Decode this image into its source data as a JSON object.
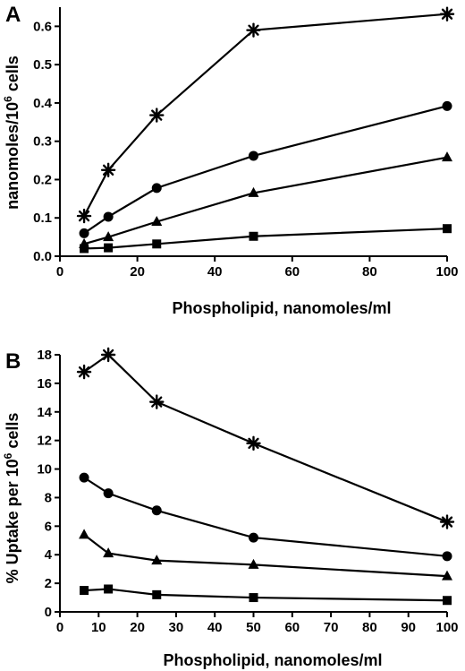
{
  "chart_data": [
    {
      "panel": "A",
      "type": "line",
      "xlabel": "Phospholipid, nanomoles/ml",
      "ylabel_main": "nanomoles/10",
      "ylabel_sup": "6",
      "ylabel_tail": " cells",
      "xlim": [
        0,
        100
      ],
      "ylim": [
        0,
        0.65
      ],
      "xticks": [
        0,
        20,
        40,
        60,
        80,
        100
      ],
      "xtick_labels": [
        "0",
        "20",
        "40",
        "60",
        "80",
        "100"
      ],
      "yticks": [
        0,
        0.1,
        0.2,
        0.3,
        0.4,
        0.5,
        0.6
      ],
      "ytick_labels": [
        "0.0",
        "0.1",
        "0.2",
        "0.3",
        "0.4",
        "0.5",
        "0.6"
      ],
      "grid": false,
      "series": [
        {
          "marker": "asterisk",
          "x": [
            6.25,
            12.5,
            25,
            50,
            100
          ],
          "y": [
            0.105,
            0.225,
            0.368,
            0.59,
            0.632
          ]
        },
        {
          "marker": "circle",
          "x": [
            6.25,
            12.5,
            25,
            50,
            100
          ],
          "y": [
            0.06,
            0.103,
            0.178,
            0.262,
            0.392
          ]
        },
        {
          "marker": "triangle",
          "x": [
            6.25,
            12.5,
            25,
            50,
            100
          ],
          "y": [
            0.032,
            0.05,
            0.09,
            0.165,
            0.258
          ]
        },
        {
          "marker": "square",
          "x": [
            6.25,
            12.5,
            25,
            50,
            100
          ],
          "y": [
            0.02,
            0.022,
            0.032,
            0.052,
            0.072
          ]
        }
      ]
    },
    {
      "panel": "B",
      "type": "line",
      "xlabel": "Phospholipid, nanomoles/ml",
      "ylabel_main": "% Uptake per 10",
      "ylabel_sup": "6",
      "ylabel_tail": " cells",
      "xlim": [
        0,
        100
      ],
      "ylim": [
        0,
        18
      ],
      "xticks": [
        0,
        10,
        20,
        30,
        40,
        50,
        60,
        70,
        80,
        90,
        100
      ],
      "xtick_labels": [
        "0",
        "10",
        "20",
        "30",
        "40",
        "50",
        "60",
        "70",
        "80",
        "90",
        "100"
      ],
      "yticks": [
        0,
        2,
        4,
        6,
        8,
        10,
        12,
        14,
        16,
        18
      ],
      "ytick_labels": [
        "0",
        "2",
        "4",
        "6",
        "8",
        "10",
        "12",
        "14",
        "16",
        "18"
      ],
      "grid": false,
      "series": [
        {
          "marker": "asterisk",
          "x": [
            6.25,
            12.5,
            25,
            50,
            100
          ],
          "y": [
            16.8,
            18.0,
            14.7,
            11.8,
            6.3
          ]
        },
        {
          "marker": "circle",
          "x": [
            6.25,
            12.5,
            25,
            50,
            100
          ],
          "y": [
            9.4,
            8.3,
            7.1,
            5.2,
            3.9
          ]
        },
        {
          "marker": "triangle",
          "x": [
            6.25,
            12.5,
            25,
            50,
            100
          ],
          "y": [
            5.4,
            4.1,
            3.6,
            3.3,
            2.5
          ]
        },
        {
          "marker": "square",
          "x": [
            6.25,
            12.5,
            25,
            50,
            100
          ],
          "y": [
            1.5,
            1.6,
            1.2,
            1.0,
            0.8
          ]
        }
      ]
    }
  ]
}
